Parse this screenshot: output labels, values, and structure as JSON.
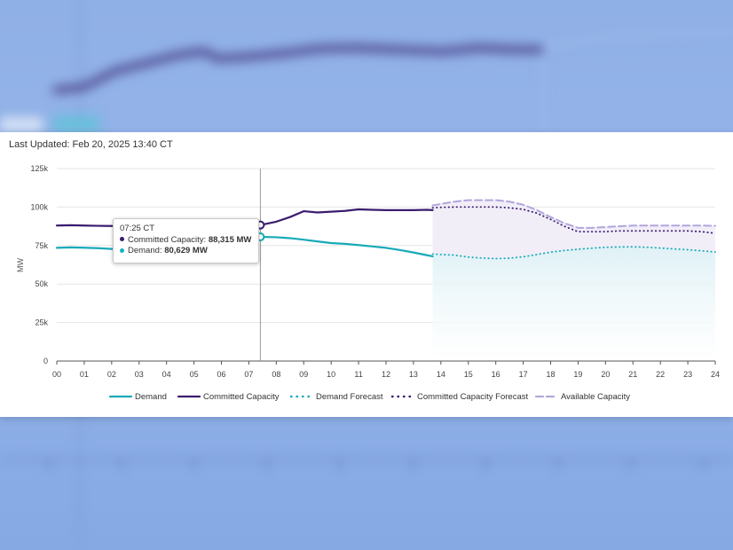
{
  "last_updated": "Last Updated: Feb 20, 2025 13:40 CT",
  "tooltip": {
    "time": "07:25 CT",
    "rows": [
      {
        "label": "Committed Capacity:",
        "value": "88,315 MW",
        "color": "#3a1c6e"
      },
      {
        "label": "Demand:",
        "value": "80,629 MW",
        "color": "#1ab1c2"
      }
    ],
    "cursor_hour": 7.42
  },
  "colors": {
    "demand": "#17aab8",
    "committed": "#3a1c6e",
    "available": "#b2a6db",
    "forecast_fill": "#dff1f6",
    "available_fill": "#f1eef8",
    "grid": "#e6e6e6"
  },
  "chart_data": {
    "type": "line",
    "xlabel": "",
    "ylabel": "MW",
    "xlim": [
      0,
      24
    ],
    "ylim": [
      0,
      125000
    ],
    "x_ticks": [
      "00",
      "01",
      "02",
      "03",
      "04",
      "05",
      "06",
      "07",
      "08",
      "09",
      "10",
      "11",
      "12",
      "13",
      "14",
      "15",
      "16",
      "17",
      "18",
      "19",
      "20",
      "21",
      "22",
      "23",
      "24"
    ],
    "y_ticks": [
      {
        "value": 0,
        "label": "0"
      },
      {
        "value": 25000,
        "label": "25k"
      },
      {
        "value": 50000,
        "label": "50k"
      },
      {
        "value": 75000,
        "label": "75k"
      },
      {
        "value": 100000,
        "label": "100k"
      },
      {
        "value": 125000,
        "label": "125k"
      }
    ],
    "legend_position": "bottom",
    "grid": true,
    "series": [
      {
        "name": "Demand",
        "style": "solid",
        "color": "#17aab8",
        "x": [
          0,
          0.5,
          1,
          1.5,
          2,
          2.5,
          3,
          3.5,
          4,
          4.5,
          5,
          5.5,
          6,
          6.5,
          7,
          7.42,
          8,
          8.5,
          9,
          9.5,
          10,
          10.5,
          11,
          11.5,
          12,
          12.5,
          13,
          13.5,
          13.7
        ],
        "y": [
          73500,
          73800,
          73600,
          73300,
          72800,
          72700,
          73100,
          73900,
          75200,
          76600,
          78000,
          79000,
          79800,
          80200,
          80500,
          80629,
          80400,
          79800,
          78800,
          77700,
          76600,
          76100,
          75300,
          74400,
          73500,
          72100,
          70500,
          68700,
          68000
        ]
      },
      {
        "name": "Committed Capacity",
        "style": "solid",
        "color": "#3a1c6e",
        "x": [
          0,
          0.5,
          1,
          1.5,
          2,
          2.5,
          3,
          3.5,
          4,
          4.5,
          5,
          5.5,
          6,
          6.5,
          7,
          7.42,
          8,
          8.5,
          9,
          9.5,
          10,
          10.5,
          11,
          11.5,
          12,
          12.5,
          13,
          13.5,
          13.7
        ],
        "y": [
          88000,
          88200,
          88000,
          87800,
          87700,
          87600,
          87800,
          88000,
          88100,
          88100,
          88200,
          88200,
          88200,
          88300,
          88300,
          88315,
          90500,
          93500,
          97300,
          96500,
          97000,
          97500,
          98500,
          98200,
          98000,
          98000,
          98000,
          98200,
          98000
        ]
      },
      {
        "name": "Demand Forecast",
        "style": "dotted",
        "color": "#17aab8",
        "x": [
          13.7,
          14,
          14.5,
          15,
          15.5,
          16,
          16.5,
          17,
          17.5,
          18,
          18.5,
          19,
          19.5,
          20,
          20.5,
          21,
          21.5,
          22,
          22.5,
          23,
          23.5,
          24
        ],
        "y": [
          69500,
          69200,
          68800,
          67500,
          66900,
          66500,
          66800,
          67700,
          69200,
          70700,
          71800,
          72600,
          73300,
          73900,
          74100,
          74200,
          73900,
          73400,
          72800,
          72300,
          71600,
          70800
        ]
      },
      {
        "name": "Committed Capacity Forecast",
        "style": "dotted",
        "color": "#3a1c6e",
        "x": [
          13.7,
          14,
          14.5,
          15,
          15.5,
          16,
          16.5,
          17,
          17.5,
          18,
          18.5,
          19,
          19.5,
          20,
          20.5,
          21,
          21.5,
          22,
          22.5,
          23,
          23.5,
          24
        ],
        "y": [
          99500,
          99800,
          100000,
          100000,
          100000,
          100000,
          99500,
          98500,
          96000,
          92000,
          87500,
          84000,
          84000,
          84000,
          84500,
          84500,
          84500,
          84500,
          84500,
          84500,
          84000,
          83000
        ]
      },
      {
        "name": "Available Capacity",
        "style": "dashed",
        "color": "#b2a6db",
        "x": [
          13.7,
          14,
          14.5,
          15,
          15.5,
          16,
          16.5,
          17,
          17.5,
          18,
          18.5,
          19,
          19.5,
          20,
          20.5,
          21,
          21.5,
          22,
          22.5,
          23,
          23.5,
          24
        ],
        "y": [
          101000,
          102000,
          103500,
          104500,
          104500,
          104500,
          103500,
          101500,
          98000,
          93500,
          89500,
          86500,
          86500,
          87000,
          87500,
          88000,
          88000,
          88000,
          88000,
          88000,
          88000,
          87800
        ]
      }
    ]
  }
}
